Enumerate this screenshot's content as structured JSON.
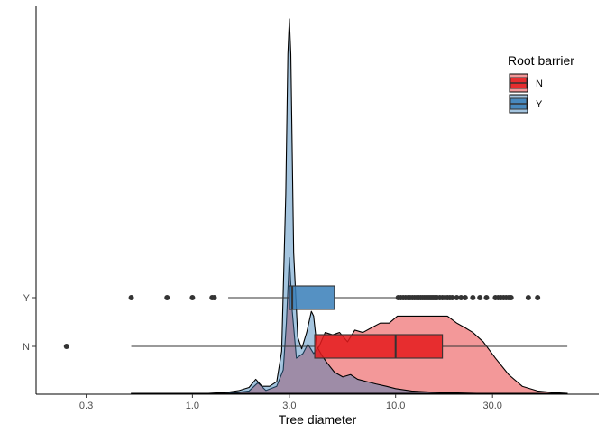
{
  "chart_data": {
    "type": "density-boxplot",
    "x_scale": "log10",
    "xlim": [
      0.17,
      100
    ],
    "xlabel": "Tree diameter",
    "ylabel": "",
    "x_ticks": [
      {
        "value": 0.3,
        "label": "0.3"
      },
      {
        "value": 1.0,
        "label": "1.0"
      },
      {
        "value": 3.0,
        "label": "3.0"
      },
      {
        "value": 10.0,
        "label": "10.0"
      },
      {
        "value": 30.0,
        "label": "30.0"
      }
    ],
    "y_categories": [
      "N",
      "Y"
    ],
    "grid": false,
    "legend": {
      "title": "Root barrier",
      "position": "right",
      "entries": [
        {
          "key": "N",
          "label": "N",
          "fill": "#E41A1C"
        },
        {
          "key": "Y",
          "label": "Y",
          "fill": "#377EB8"
        }
      ]
    },
    "density_scale_max": 1.65,
    "densities": [
      {
        "name": "N",
        "fill": "#E41A1C",
        "points": [
          [
            0.5,
            0
          ],
          [
            1.3,
            0
          ],
          [
            1.6,
            0.002
          ],
          [
            1.9,
            0.01
          ],
          [
            2.1,
            0.045
          ],
          [
            2.3,
            0.012
          ],
          [
            2.6,
            0.03
          ],
          [
            2.8,
            0.1
          ],
          [
            2.9,
            0.3
          ],
          [
            3.0,
            0.58
          ],
          [
            3.1,
            0.35
          ],
          [
            3.25,
            0.15
          ],
          [
            3.5,
            0.17
          ],
          [
            3.7,
            0.21
          ],
          [
            3.95,
            0.17
          ],
          [
            4.2,
            0.2
          ],
          [
            4.5,
            0.26
          ],
          [
            4.9,
            0.25
          ],
          [
            5.3,
            0.26
          ],
          [
            5.8,
            0.22
          ],
          [
            6.3,
            0.27
          ],
          [
            6.9,
            0.26
          ],
          [
            7.6,
            0.28
          ],
          [
            8.4,
            0.3
          ],
          [
            9.3,
            0.3
          ],
          [
            10.2,
            0.33
          ],
          [
            11.3,
            0.33
          ],
          [
            12.5,
            0.33
          ],
          [
            14,
            0.33
          ],
          [
            16,
            0.33
          ],
          [
            18,
            0.33
          ],
          [
            20,
            0.3
          ],
          [
            22,
            0.28
          ],
          [
            24,
            0.26
          ],
          [
            27,
            0.22
          ],
          [
            31,
            0.15
          ],
          [
            36,
            0.08
          ],
          [
            42,
            0.03
          ],
          [
            50,
            0.01
          ],
          [
            60,
            0.003
          ],
          [
            70,
            0
          ]
        ]
      },
      {
        "name": "Y",
        "fill": "#377EB8",
        "points": [
          [
            1.2,
            0
          ],
          [
            1.5,
            0.005
          ],
          [
            1.7,
            0.012
          ],
          [
            1.9,
            0.025
          ],
          [
            2.05,
            0.06
          ],
          [
            2.2,
            0.03
          ],
          [
            2.4,
            0.03
          ],
          [
            2.6,
            0.05
          ],
          [
            2.75,
            0.18
          ],
          [
            2.88,
            0.85
          ],
          [
            2.95,
            1.45
          ],
          [
            3.0,
            1.6
          ],
          [
            3.05,
            1.45
          ],
          [
            3.15,
            0.6
          ],
          [
            3.3,
            0.24
          ],
          [
            3.45,
            0.19
          ],
          [
            3.65,
            0.26
          ],
          [
            3.85,
            0.35
          ],
          [
            3.95,
            0.33
          ],
          [
            4.1,
            0.2
          ],
          [
            4.35,
            0.16
          ],
          [
            4.6,
            0.13
          ],
          [
            5.0,
            0.09
          ],
          [
            5.5,
            0.07
          ],
          [
            6.0,
            0.08
          ],
          [
            6.5,
            0.06
          ],
          [
            7.2,
            0.05
          ],
          [
            8.0,
            0.04
          ],
          [
            9.0,
            0.03
          ],
          [
            10,
            0.02
          ],
          [
            12,
            0.01
          ],
          [
            15,
            0.005
          ],
          [
            20,
            0.002
          ],
          [
            25,
            0
          ]
        ]
      }
    ],
    "boxplots": [
      {
        "name": "N",
        "fill": "#E41A1C",
        "whisker_low": 0.5,
        "q1": 4.0,
        "median": 10.0,
        "q3": 17.0,
        "whisker_high": 70.0,
        "outliers": [
          0.24
        ]
      },
      {
        "name": "Y",
        "fill": "#377EB8",
        "whisker_low": 1.5,
        "q1": 3.0,
        "median": 3.1,
        "q3": 5.0,
        "whisker_high": 10.0,
        "outliers": [
          0.5,
          0.75,
          1.0,
          1.25,
          1.28,
          10.3,
          10.6,
          10.9,
          11.2,
          11.5,
          11.8,
          12.1,
          12.4,
          12.7,
          13.0,
          13.3,
          13.6,
          13.9,
          14.2,
          14.5,
          14.8,
          15.1,
          15.4,
          15.7,
          16.0,
          16.5,
          17.0,
          17.5,
          18.0,
          18.5,
          19.0,
          20.0,
          21.0,
          22.0,
          24.0,
          26.0,
          28.0,
          31.0,
          32.0,
          33.0,
          34.0,
          35.0,
          36.0,
          37.0,
          45.0,
          50.0
        ]
      }
    ]
  }
}
